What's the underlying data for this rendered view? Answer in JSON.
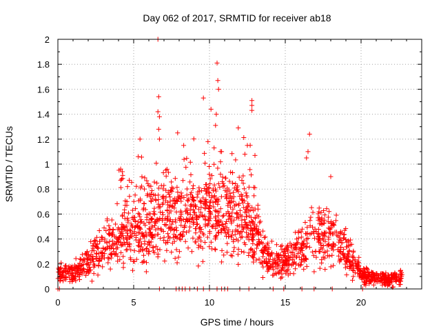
{
  "chart_data": {
    "type": "scatter",
    "title": "Day 062 of 2017, SRMTID for receiver ab18",
    "xlabel": "GPS time / hours",
    "ylabel": "SRMTID / TECUs",
    "xlim": [
      0,
      24
    ],
    "ylim": [
      0,
      2
    ],
    "grid": true,
    "marker": "plus",
    "color": "#ff0000",
    "xticks": [
      0,
      5,
      10,
      15,
      20
    ],
    "xtick_labels": [
      "0",
      "5",
      "10",
      "15",
      "20"
    ],
    "yticks": [
      0,
      0.2,
      0.4,
      0.6,
      0.8,
      1,
      1.2,
      1.4,
      1.6,
      1.8,
      2
    ],
    "ytick_labels": [
      "0",
      "0.2",
      "0.4",
      "0.6",
      "0.8",
      "1",
      "1.2",
      "1.4",
      "1.6",
      "1.8",
      "2"
    ],
    "envelope": {
      "description": "approximate typical SRMTID level vs hour (dense cloud of points around these levels)",
      "x": [
        0,
        1,
        2,
        3,
        4,
        5,
        6,
        7,
        8,
        9,
        10,
        11,
        12,
        13,
        14,
        15,
        16,
        17,
        18,
        19,
        20,
        21,
        22,
        22.7
      ],
      "y": [
        0.12,
        0.13,
        0.22,
        0.33,
        0.42,
        0.48,
        0.45,
        0.55,
        0.5,
        0.52,
        0.58,
        0.6,
        0.55,
        0.45,
        0.22,
        0.22,
        0.32,
        0.42,
        0.45,
        0.3,
        0.12,
        0.08,
        0.08,
        0.09
      ]
    },
    "outliers": [
      {
        "x": 6.6,
        "y": 2.0
      },
      {
        "x": 6.65,
        "y": 1.54
      },
      {
        "x": 6.6,
        "y": 1.42
      },
      {
        "x": 6.7,
        "y": 1.38
      },
      {
        "x": 6.65,
        "y": 1.28
      },
      {
        "x": 6.7,
        "y": 1.2
      },
      {
        "x": 7.9,
        "y": 1.25
      },
      {
        "x": 9.6,
        "y": 1.53
      },
      {
        "x": 10.1,
        "y": 1.44
      },
      {
        "x": 10.5,
        "y": 1.81
      },
      {
        "x": 10.55,
        "y": 1.67
      },
      {
        "x": 10.6,
        "y": 1.6
      },
      {
        "x": 10.4,
        "y": 1.31
      },
      {
        "x": 10.45,
        "y": 1.4
      },
      {
        "x": 11.9,
        "y": 1.29
      },
      {
        "x": 12.5,
        "y": 1.15
      },
      {
        "x": 12.8,
        "y": 1.51
      },
      {
        "x": 12.8,
        "y": 1.47
      },
      {
        "x": 12.8,
        "y": 1.43
      },
      {
        "x": 16.6,
        "y": 1.24
      },
      {
        "x": 16.5,
        "y": 1.1
      },
      {
        "x": 5.3,
        "y": 1.06
      },
      {
        "x": 8.3,
        "y": 1.15
      },
      {
        "x": 9.9,
        "y": 1.18
      },
      {
        "x": 10.8,
        "y": 1.1
      },
      {
        "x": 13.0,
        "y": 1.07
      },
      {
        "x": 16.4,
        "y": 1.05
      },
      {
        "x": 4.2,
        "y": 0.88
      },
      {
        "x": 18.0,
        "y": 0.9
      }
    ],
    "zeros_x": [
      0,
      0.1,
      6.7,
      7.8,
      8.0,
      8.2,
      8.4,
      8.7,
      9.2,
      9.6,
      10.0,
      10.5,
      10.8,
      11.0,
      11.2,
      12.0,
      12.6,
      14.2,
      14.9,
      16.1,
      16.9,
      18.1,
      20.1
    ]
  }
}
